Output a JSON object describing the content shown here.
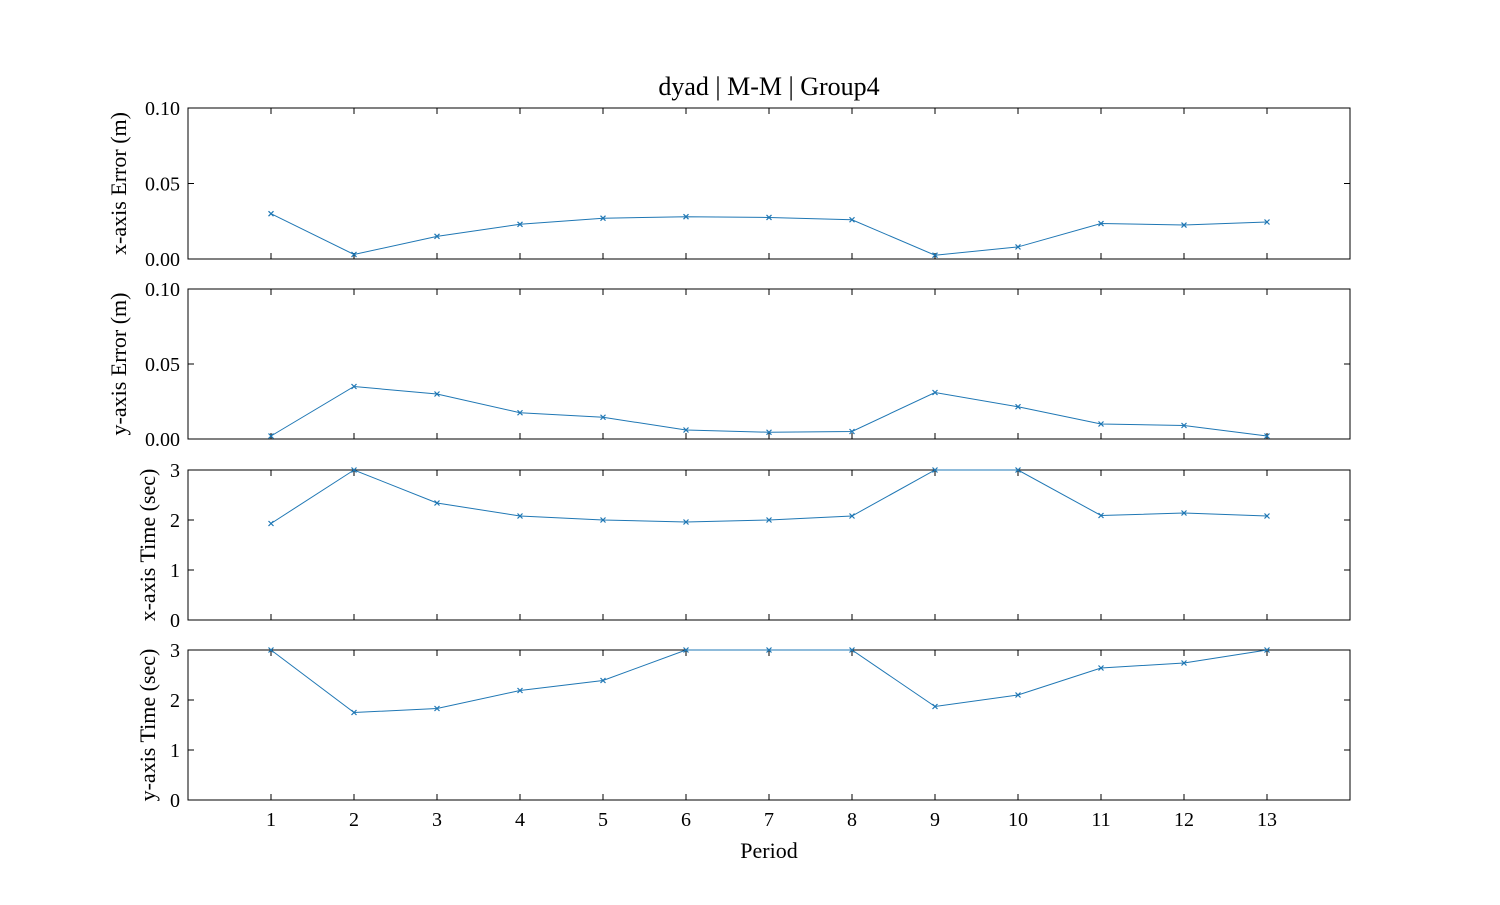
{
  "chart_data": {
    "type": "line",
    "title": "dyad | M-M | Group4",
    "xlabel": "Period",
    "x": [
      1,
      2,
      3,
      4,
      5,
      6,
      7,
      8,
      9,
      10,
      11,
      12,
      13
    ],
    "xlim": [
      0,
      14
    ],
    "series_color": "#1f77b4",
    "marker": "x",
    "subplots": [
      {
        "ylabel": "x-axis Error (m)",
        "ylim": [
          0,
          0.1
        ],
        "yticks": [
          0.0,
          0.05,
          0.1
        ],
        "ytick_labels": [
          "0.00",
          "0.05",
          "0.10"
        ],
        "values": [
          0.03,
          0.003,
          0.015,
          0.023,
          0.027,
          0.028,
          0.0275,
          0.026,
          0.0025,
          0.008,
          0.0235,
          0.0225,
          0.0245
        ]
      },
      {
        "ylabel": "y-axis Error (m)",
        "ylim": [
          0,
          0.1
        ],
        "yticks": [
          0.0,
          0.05,
          0.1
        ],
        "ytick_labels": [
          "0.00",
          "0.05",
          "0.10"
        ],
        "values": [
          0.002,
          0.035,
          0.03,
          0.0175,
          0.0145,
          0.006,
          0.0045,
          0.005,
          0.031,
          0.0215,
          0.01,
          0.009,
          0.002
        ]
      },
      {
        "ylabel": "x-axis Time (sec)",
        "ylim": [
          0,
          3
        ],
        "yticks": [
          0,
          1,
          2,
          3
        ],
        "ytick_labels": [
          "0",
          "1",
          "2",
          "3"
        ],
        "values": [
          1.93,
          3.0,
          2.34,
          2.08,
          2.0,
          1.96,
          2.0,
          2.08,
          3.0,
          3.0,
          2.09,
          2.14,
          2.08
        ]
      },
      {
        "ylabel": "y-axis Time (sec)",
        "ylim": [
          0,
          3
        ],
        "yticks": [
          0,
          1,
          2,
          3
        ],
        "ytick_labels": [
          "0",
          "1",
          "2",
          "3"
        ],
        "values": [
          3.0,
          1.75,
          1.83,
          2.19,
          2.39,
          3.0,
          3.0,
          3.0,
          1.87,
          2.1,
          2.64,
          2.74,
          3.0
        ]
      }
    ]
  }
}
